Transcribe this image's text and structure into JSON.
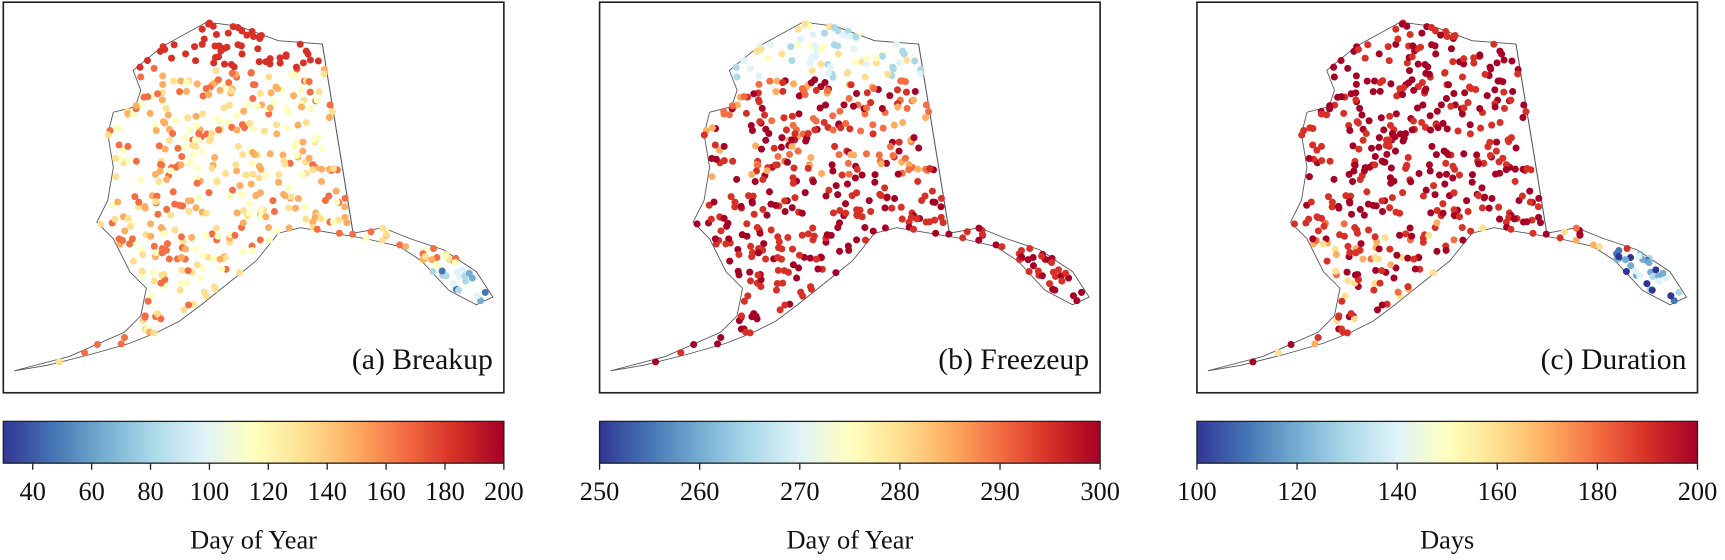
{
  "colormap": [
    "#313695",
    "#4575b4",
    "#74add1",
    "#abd9e9",
    "#e0f3f8",
    "#ffffbf",
    "#fee090",
    "#fdae61",
    "#f46d43",
    "#d73027",
    "#a50026"
  ],
  "panels": [
    {
      "label": "(a) Breakup",
      "colorbar": {
        "lim": [
          30,
          200
        ],
        "ticks": [
          40,
          60,
          80,
          100,
          120,
          140,
          160,
          180,
          200
        ],
        "label": "Day of Year"
      }
    },
    {
      "label": "(b) Freezeup",
      "colorbar": {
        "lim": [
          250,
          300
        ],
        "ticks": [
          250,
          260,
          270,
          280,
          290,
          300
        ],
        "label": "Day of Year"
      }
    },
    {
      "label": "(c) Duration",
      "colorbar": {
        "lim": [
          100,
          200
        ],
        "ticks": [
          100,
          120,
          140,
          160,
          180,
          200
        ],
        "label": "Days"
      }
    }
  ]
}
